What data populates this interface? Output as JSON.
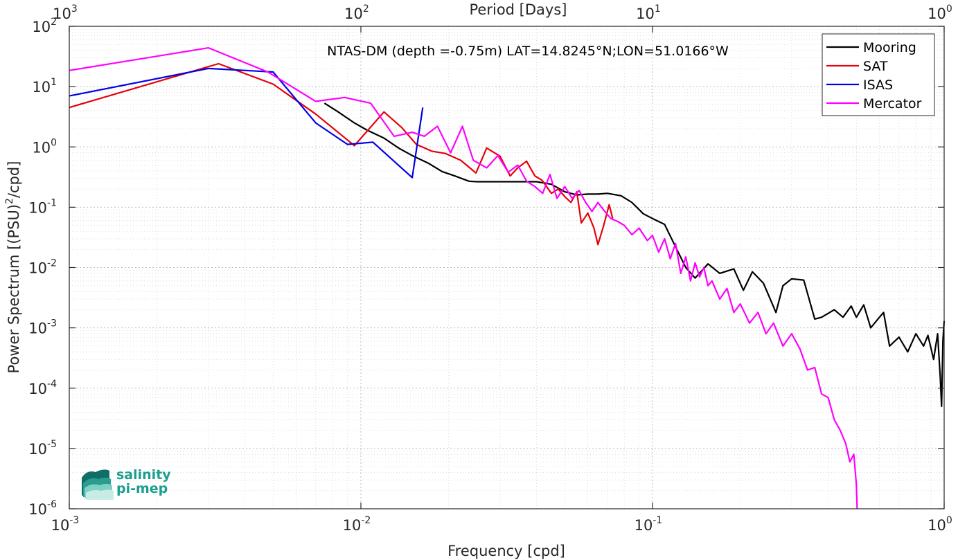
{
  "chart_data": {
    "type": "line",
    "title": "NTAS-DM (depth =-0.75m) LAT=14.8245°N;LON=51.0166°W",
    "xlabel": "Frequency [cpd]",
    "ylabel_main": "Power Spectrum [(PSU)",
    "ylabel_sup": "2",
    "ylabel_end": "/cpd]",
    "top_xlabel": "Period [Days]",
    "x_scale": "log",
    "y_scale": "log",
    "xlim": [
      0.001,
      1
    ],
    "ylim": [
      1e-06,
      100
    ],
    "x_ticks": [
      {
        "value": 0.001,
        "base": "10",
        "exp": "-3"
      },
      {
        "value": 0.01,
        "base": "10",
        "exp": "-2"
      },
      {
        "value": 0.1,
        "base": "10",
        "exp": "-1"
      },
      {
        "value": 1,
        "base": "10",
        "exp": "0"
      }
    ],
    "y_ticks": [
      {
        "value": 1e-06,
        "base": "10",
        "exp": "-6"
      },
      {
        "value": 1e-05,
        "base": "10",
        "exp": "-5"
      },
      {
        "value": 0.0001,
        "base": "10",
        "exp": "-4"
      },
      {
        "value": 0.001,
        "base": "10",
        "exp": "-3"
      },
      {
        "value": 0.01,
        "base": "10",
        "exp": "-2"
      },
      {
        "value": 0.1,
        "base": "10",
        "exp": "-1"
      },
      {
        "value": 1,
        "base": "10",
        "exp": "0"
      },
      {
        "value": 10,
        "base": "10",
        "exp": "1"
      },
      {
        "value": 100,
        "base": "10",
        "exp": "2"
      }
    ],
    "top_ticks": [
      {
        "value": 0.001,
        "base": "10",
        "exp": "3"
      },
      {
        "value": 0.01,
        "base": "10",
        "exp": "2"
      },
      {
        "value": 0.1,
        "base": "10",
        "exp": "1"
      },
      {
        "value": 1,
        "base": "10",
        "exp": "0"
      }
    ],
    "grid": true,
    "minor_grid": true,
    "legend_position": "top-right",
    "series": [
      {
        "name": "Mooring",
        "color": "#000000",
        "x": [
          0.0075,
          0.0083,
          0.0095,
          0.0105,
          0.012,
          0.0135,
          0.015,
          0.017,
          0.019,
          0.021,
          0.0235,
          0.025,
          0.03,
          0.035,
          0.04,
          0.045,
          0.05,
          0.055,
          0.06,
          0.065,
          0.07,
          0.078,
          0.085,
          0.093,
          0.1,
          0.11,
          0.12,
          0.13,
          0.14,
          0.155,
          0.17,
          0.19,
          0.205,
          0.22,
          0.24,
          0.265,
          0.28,
          0.3,
          0.33,
          0.36,
          0.38,
          0.42,
          0.45,
          0.48,
          0.5,
          0.53,
          0.56,
          0.6,
          0.62,
          0.65,
          0.7,
          0.75,
          0.8,
          0.85,
          0.88,
          0.92,
          0.95,
          0.97,
          0.98,
          0.99,
          1.0
        ],
        "y": [
          5.3,
          3.9,
          2.5,
          1.9,
          1.4,
          0.95,
          0.72,
          0.54,
          0.39,
          0.33,
          0.27,
          0.265,
          0.265,
          0.265,
          0.265,
          0.24,
          0.18,
          0.16,
          0.165,
          0.165,
          0.17,
          0.155,
          0.12,
          0.078,
          0.065,
          0.052,
          0.022,
          0.01,
          0.0067,
          0.0115,
          0.008,
          0.0095,
          0.0042,
          0.0085,
          0.0055,
          0.0018,
          0.005,
          0.0065,
          0.0062,
          0.0014,
          0.0015,
          0.002,
          0.0015,
          0.0023,
          0.0015,
          0.0024,
          0.001,
          0.0015,
          0.0018,
          0.0005,
          0.0007,
          0.0004,
          0.0008,
          0.0005,
          0.00075,
          0.0003,
          0.0008,
          0.00015,
          5e-05,
          0.0006,
          0.0013
        ]
      },
      {
        "name": "SAT",
        "color": "#e6000b",
        "x": [
          0.001,
          0.00325,
          0.005,
          0.007,
          0.0095,
          0.012,
          0.0138,
          0.0155,
          0.0175,
          0.0195,
          0.022,
          0.0248,
          0.027,
          0.03,
          0.0325,
          0.0345,
          0.037,
          0.0395,
          0.0418,
          0.045,
          0.0475,
          0.05,
          0.0525,
          0.055,
          0.057,
          0.06,
          0.063,
          0.065,
          0.068,
          0.071,
          0.073
        ],
        "y": [
          4.5,
          24,
          11,
          3.5,
          1.05,
          3.8,
          2.1,
          1.1,
          0.85,
          0.78,
          0.6,
          0.37,
          0.96,
          0.7,
          0.33,
          0.45,
          0.58,
          0.33,
          0.28,
          0.17,
          0.2,
          0.15,
          0.12,
          0.18,
          0.055,
          0.08,
          0.045,
          0.024,
          0.05,
          0.11,
          0.065
        ]
      },
      {
        "name": "ISAS",
        "color": "#0000e6",
        "x": [
          0.001,
          0.003,
          0.005,
          0.007,
          0.009,
          0.011,
          0.015,
          0.0163
        ],
        "y": [
          7.0,
          20,
          17.5,
          2.5,
          1.1,
          1.2,
          0.31,
          4.5
        ]
      },
      {
        "name": "Mercator",
        "color": "#ff00ff",
        "x": [
          0.001,
          0.003,
          0.0048,
          0.007,
          0.0088,
          0.0108,
          0.013,
          0.015,
          0.0165,
          0.0183,
          0.0203,
          0.0223,
          0.0243,
          0.027,
          0.0295,
          0.032,
          0.0345,
          0.037,
          0.0395,
          0.042,
          0.0445,
          0.047,
          0.05,
          0.053,
          0.056,
          0.059,
          0.062,
          0.065,
          0.068,
          0.072,
          0.076,
          0.08,
          0.085,
          0.09,
          0.096,
          0.1,
          0.105,
          0.11,
          0.115,
          0.12,
          0.125,
          0.13,
          0.135,
          0.14,
          0.145,
          0.15,
          0.155,
          0.16,
          0.17,
          0.18,
          0.19,
          0.2,
          0.215,
          0.23,
          0.245,
          0.26,
          0.28,
          0.3,
          0.32,
          0.34,
          0.36,
          0.38,
          0.4,
          0.42,
          0.44,
          0.46,
          0.475,
          0.49,
          0.5,
          0.503
        ],
        "y": [
          18.5,
          44,
          17.5,
          5.7,
          6.6,
          5.3,
          1.5,
          1.75,
          1.5,
          2.2,
          0.8,
          2.2,
          0.6,
          0.45,
          0.72,
          0.38,
          0.5,
          0.27,
          0.22,
          0.17,
          0.35,
          0.14,
          0.22,
          0.14,
          0.19,
          0.12,
          0.085,
          0.12,
          0.09,
          0.065,
          0.058,
          0.05,
          0.035,
          0.045,
          0.028,
          0.034,
          0.018,
          0.03,
          0.014,
          0.025,
          0.008,
          0.015,
          0.006,
          0.012,
          0.007,
          0.01,
          0.005,
          0.006,
          0.003,
          0.0045,
          0.0018,
          0.0025,
          0.0012,
          0.0018,
          0.0008,
          0.0012,
          0.0005,
          0.0008,
          0.00045,
          0.0002,
          0.00022,
          8e-05,
          7e-05,
          3e-05,
          2e-05,
          1.2e-05,
          6e-06,
          8e-06,
          2.5e-06,
          1e-06
        ]
      }
    ]
  },
  "logo": {
    "line1": "salinity",
    "line2": "pi-mep"
  }
}
